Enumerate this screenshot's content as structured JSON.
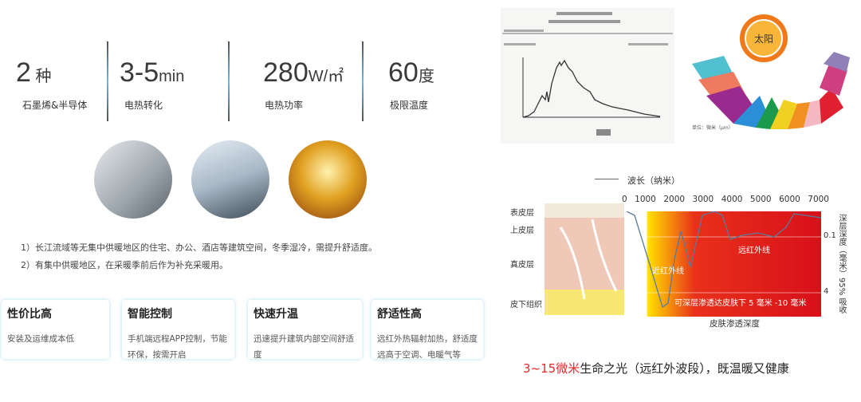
{
  "stats": [
    {
      "value": "2",
      "unit": " 种",
      "label": "石墨烯&半导体"
    },
    {
      "value": "3-5",
      "unit": "min",
      "label": "电热转化"
    },
    {
      "value": "280",
      "unit": "W/㎡",
      "label": "电热功率"
    },
    {
      "value": "60",
      "unit": "度",
      "label": "极限温度"
    }
  ],
  "notes": [
    "1）长江流域等无集中供暖地区的住宅、办公、酒店等建筑空间，冬季湿冷，需提升舒适度。",
    "2）有集中供暖地区，在采暖季前后作为补充采暖用。"
  ],
  "cards": [
    {
      "title": "性价比高",
      "desc": "安装及运维成本低"
    },
    {
      "title": "智能控制",
      "desc": "手机端远程APP控制，节能环保，按需开启"
    },
    {
      "title": "快速升温",
      "desc": "迅速提升建筑内部空间舒适度"
    },
    {
      "title": "舒适性高",
      "desc": "远红外热辐射加热，舒适度远高于空调、电暖气等"
    }
  ],
  "sun": {
    "label": "太阳",
    "unit": "单位：微米（μm）"
  },
  "skin": {
    "wavelength_label": "波长（纳米）",
    "ticks": [
      "0",
      "1000",
      "2000",
      "3000",
      "4000",
      "5000",
      "6000",
      "7000"
    ],
    "layers": [
      "表皮层",
      "上皮层",
      "真皮层",
      "皮下组织"
    ],
    "near_ir": "近红外线",
    "far_ir": "远红外线",
    "depth_note": "可深层渗透达皮肤下 5 毫米 -10 毫米",
    "x_label": "皮肤渗透深度",
    "y_label": "深层深度（毫米）95% 吸收",
    "y_ticks": [
      "0.1",
      "4"
    ]
  },
  "caption": {
    "highlight": "3~15微米",
    "rest": "生命之光（远红外波段），既温暖又健康",
    "highlight_color": "#e8262b"
  }
}
